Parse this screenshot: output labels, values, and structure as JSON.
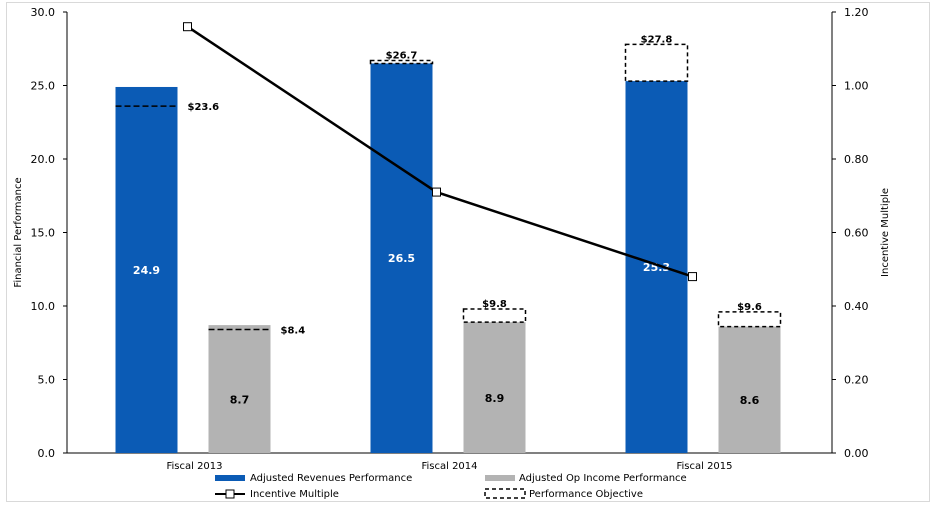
{
  "chart_data": {
    "type": "bar",
    "categories": [
      "Fiscal 2013",
      "Fiscal 2014",
      "Fiscal 2015"
    ],
    "left_axis": {
      "label": "Financial Performance",
      "ylim": [
        0,
        30
      ],
      "ticks": [
        "0.0",
        "5.0",
        "10.0",
        "15.0",
        "20.0",
        "25.0",
        "30.0"
      ]
    },
    "right_axis": {
      "label": "Incentive Multiple",
      "ylim": [
        0,
        1.2
      ],
      "ticks": [
        "0.00",
        "0.20",
        "0.40",
        "0.60",
        "0.80",
        "1.00",
        "1.20"
      ]
    },
    "series": [
      {
        "name": "Adjusted Revenues Performance",
        "color": "#0b5bb5",
        "values": [
          24.9,
          26.5,
          25.3
        ],
        "labels": [
          "24.9",
          "26.5",
          "25.3"
        ],
        "objective": [
          23.6,
          26.7,
          27.8
        ],
        "objective_labels": [
          "$23.6",
          "$26.7",
          "$27.8"
        ]
      },
      {
        "name": "Adjusted Op Income Performance",
        "color": "#b3b3b3",
        "values": [
          8.7,
          8.9,
          8.6
        ],
        "labels": [
          "8.7",
          "8.9",
          "8.6"
        ],
        "objective": [
          8.4,
          9.8,
          9.6
        ],
        "objective_labels": [
          "$8.4",
          "$9.8",
          "$9.6"
        ]
      }
    ],
    "line_series": {
      "name": "Incentive Multiple",
      "axis": "right",
      "values": [
        1.16,
        0.71,
        0.48
      ]
    },
    "objective_legend": "Performance Objective",
    "legend_position": "bottom",
    "grid": false
  }
}
